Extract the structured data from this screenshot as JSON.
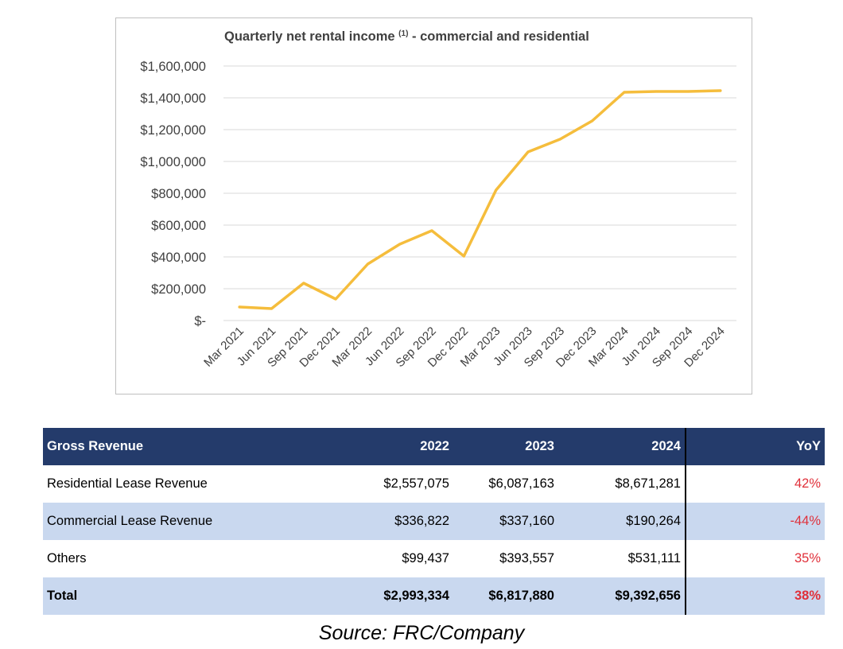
{
  "chart_data": {
    "type": "line",
    "title": "Quarterly net rental income",
    "title_sup": "(1)",
    "title_suffix": " - commercial and residential",
    "categories": [
      "Mar 2021",
      "Jun 2021",
      "Sep 2021",
      "Dec 2021",
      "Mar 2022",
      "Jun 2022",
      "Sep 2022",
      "Dec 2022",
      "Mar 2023",
      "Jun 2023",
      "Sep 2023",
      "Dec 2023",
      "Mar 2024",
      "Jun 2024",
      "Sep 2024",
      "Dec 2024"
    ],
    "series": [
      {
        "values": [
          85000,
          75000,
          235000,
          135000,
          355000,
          480000,
          565000,
          405000,
          820000,
          1060000,
          1140000,
          1255000,
          1435000,
          1440000,
          1440000,
          1445000
        ]
      }
    ],
    "y_ticks": [
      "$-",
      "$200,000",
      "$400,000",
      "$600,000",
      "$800,000",
      "$1,000,000",
      "$1,200,000",
      "$1,400,000",
      "$1,600,000"
    ],
    "ylim": [
      0,
      1600000
    ],
    "grid": true,
    "line_color": "#f5bd3c",
    "grid_color": "#d9d9d9"
  },
  "table": {
    "headers": [
      "Gross Revenue",
      "2022",
      "2023",
      "2024",
      "YoY"
    ],
    "rows": [
      {
        "label": "Residential Lease Revenue",
        "y2022": "$2,557,075",
        "y2023": "$6,087,163",
        "y2024": "$8,671,281",
        "yoy": "42%"
      },
      {
        "label": "Commercial Lease Revenue",
        "y2022": "$336,822",
        "y2023": "$337,160",
        "y2024": "$190,264",
        "yoy": "-44%"
      },
      {
        "label": "Others",
        "y2022": "$99,437",
        "y2023": "$393,557",
        "y2024": "$531,111",
        "yoy": "35%"
      },
      {
        "label": "Total",
        "y2022": "$2,993,334",
        "y2023": "$6,817,880",
        "y2024": "$9,392,656",
        "yoy": "38%"
      }
    ]
  },
  "source": "Source: FRC/Company"
}
